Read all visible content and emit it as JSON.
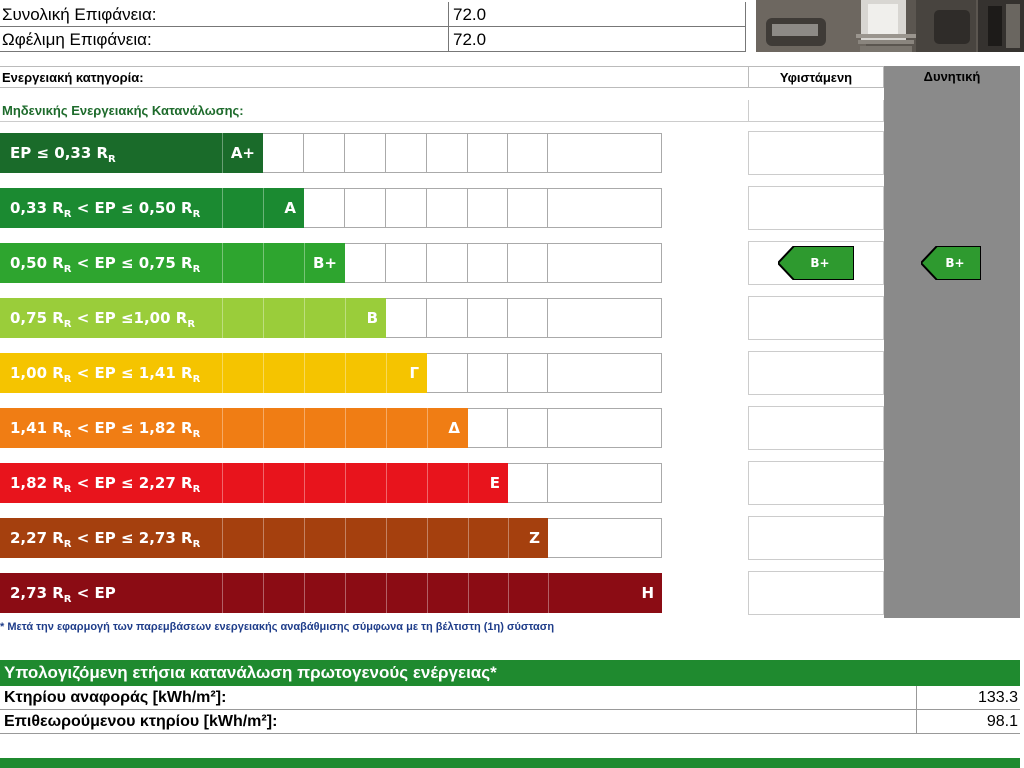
{
  "info": {
    "total_area_label": "Συνολική Επιφάνεια:",
    "total_area_value": "72.0",
    "useful_area_label": "Ωφέλιμη Επιφάνεια:",
    "useful_area_value": "72.0"
  },
  "header": {
    "category_label": "Ενεργειακή κατηγορία:",
    "existing_label": "Υφιστάμενη",
    "potential_label": "Δυνητική",
    "zero_energy_label": "Μηδενικής Ενεργειακής Κατανάλωσης:"
  },
  "classes": [
    {
      "range": "EP ≤ 0,33 R",
      "sub": "R",
      "tail": "",
      "letter": "A+",
      "color": "#1a6b2a",
      "level": 2
    },
    {
      "range": "0,33 R",
      "sub": "R",
      "tail": " < EP ≤ 0,50 R",
      "sub2": "R",
      "letter": "A",
      "color": "#1b8a31",
      "level": 3
    },
    {
      "range": "0,50 R",
      "sub": "R",
      "tail": " < EP ≤ 0,75 R",
      "sub2": "R",
      "letter": "B+",
      "color": "#2ea52f",
      "level": 4
    },
    {
      "range": "0,75 R",
      "sub": "R",
      "tail": " < EP ≤1,00 R",
      "sub2": "R",
      "letter": "B",
      "color": "#9acd3a",
      "level": 5
    },
    {
      "range": "1,00 R",
      "sub": "R",
      "tail": " < EP ≤ 1,41 R",
      "sub2": "R",
      "letter": "Γ",
      "color": "#f5c400",
      "level": 6
    },
    {
      "range": "1,41 R",
      "sub": "R",
      "tail": " < EP ≤ 1,82 R",
      "sub2": "R",
      "letter": "Δ",
      "color": "#f07d14",
      "level": 7
    },
    {
      "range": "1,82 R",
      "sub": "R",
      "tail": " < EP ≤ 2,27 R",
      "sub2": "R",
      "letter": "E",
      "color": "#e8141c",
      "level": 8
    },
    {
      "range": "2,27 R",
      "sub": "R",
      "tail": " <  EP ≤ 2,73 R",
      "sub2": "R",
      "letter": "Z",
      "color": "#a5400e",
      "level": 9
    },
    {
      "range": "2,73 R",
      "sub": "R",
      "tail": " < EP",
      "sub2": "",
      "letter": "H",
      "color": "#8b0c14",
      "level": 11
    }
  ],
  "existing_rating": {
    "label": "B+",
    "class_index": 2,
    "color": "#2e9a2f"
  },
  "potential_rating": {
    "label": "B+",
    "class_index": 2,
    "color": "#2e9a2f"
  },
  "note": "* Μετά την εφαρμογή των παρεμβάσεων ενεργειακής αναβάθμισης σύμφωνα με τη βέλτιστη (1η) σύσταση",
  "consumption": {
    "title": "Υπολογιζόμενη ετήσια κατανάλωση πρωτογενούς ενέργειας*",
    "reference_label": "Κτηρίου αναφοράς [kWh/m²]:",
    "reference_value": "133.3",
    "inspected_label": "Επιθεωρούμενου κτηρίου [kWh/m²]:",
    "inspected_value": "98.1"
  }
}
